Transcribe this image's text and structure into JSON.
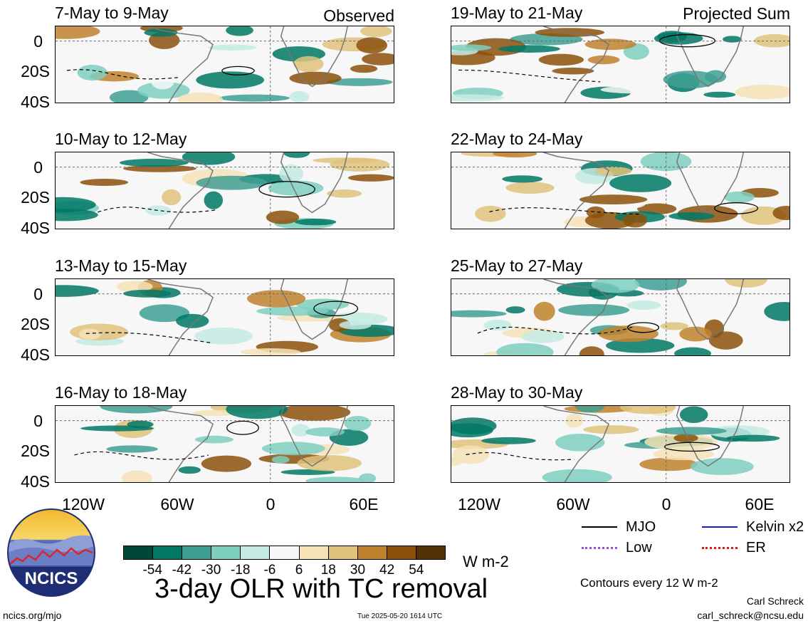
{
  "chart_data": {
    "type": "heatmap",
    "title": "3-day OLR with TC removal",
    "units": "W m-2",
    "left_column_label": "Observed",
    "right_column_label": "Projected Sum",
    "y_ticks": [
      "0",
      "20S",
      "40S"
    ],
    "x_ticks": [
      "120W",
      "60W",
      "0",
      "60E"
    ],
    "panels": [
      {
        "column": "left",
        "period": "7-May to 9-May"
      },
      {
        "column": "left",
        "period": "10-May to 12-May"
      },
      {
        "column": "left",
        "period": "13-May to 15-May"
      },
      {
        "column": "left",
        "period": "16-May to 18-May"
      },
      {
        "column": "right",
        "period": "19-May to 21-May"
      },
      {
        "column": "right",
        "period": "22-May to 24-May"
      },
      {
        "column": "right",
        "period": "25-May to 27-May"
      },
      {
        "column": "right",
        "period": "28-May to 30-May"
      }
    ],
    "colorbar": {
      "ticks": [
        "-54",
        "-42",
        "-30",
        "-18",
        "-6",
        "6",
        "18",
        "30",
        "42",
        "54"
      ],
      "colors": [
        "#00463a",
        "#007865",
        "#3f9f93",
        "#7fcfc0",
        "#c4eae3",
        "#f7f7f7",
        "#f5e3b7",
        "#dfc27d",
        "#bf812d",
        "#8c510a",
        "#543005"
      ]
    },
    "legend": [
      {
        "label": "MJO",
        "color": "#000000",
        "style": "solid"
      },
      {
        "label": "Kelvin x2",
        "color": "#1a1ad6",
        "style": "solid"
      },
      {
        "label": "Low",
        "color": "#9a4ed8",
        "style": "dotted"
      },
      {
        "label": "ER",
        "color": "#d81a1a",
        "style": "dotted"
      }
    ],
    "contour_note": "Contours every 12 W m-2"
  },
  "footer": {
    "site": "ncics.org/mjo",
    "timestamp": "Tue 2025-05-20 1614 UTC",
    "author": "Carl Schreck",
    "email": "carl_schreck@ncsu.edu",
    "logo_text": "NCICS"
  }
}
